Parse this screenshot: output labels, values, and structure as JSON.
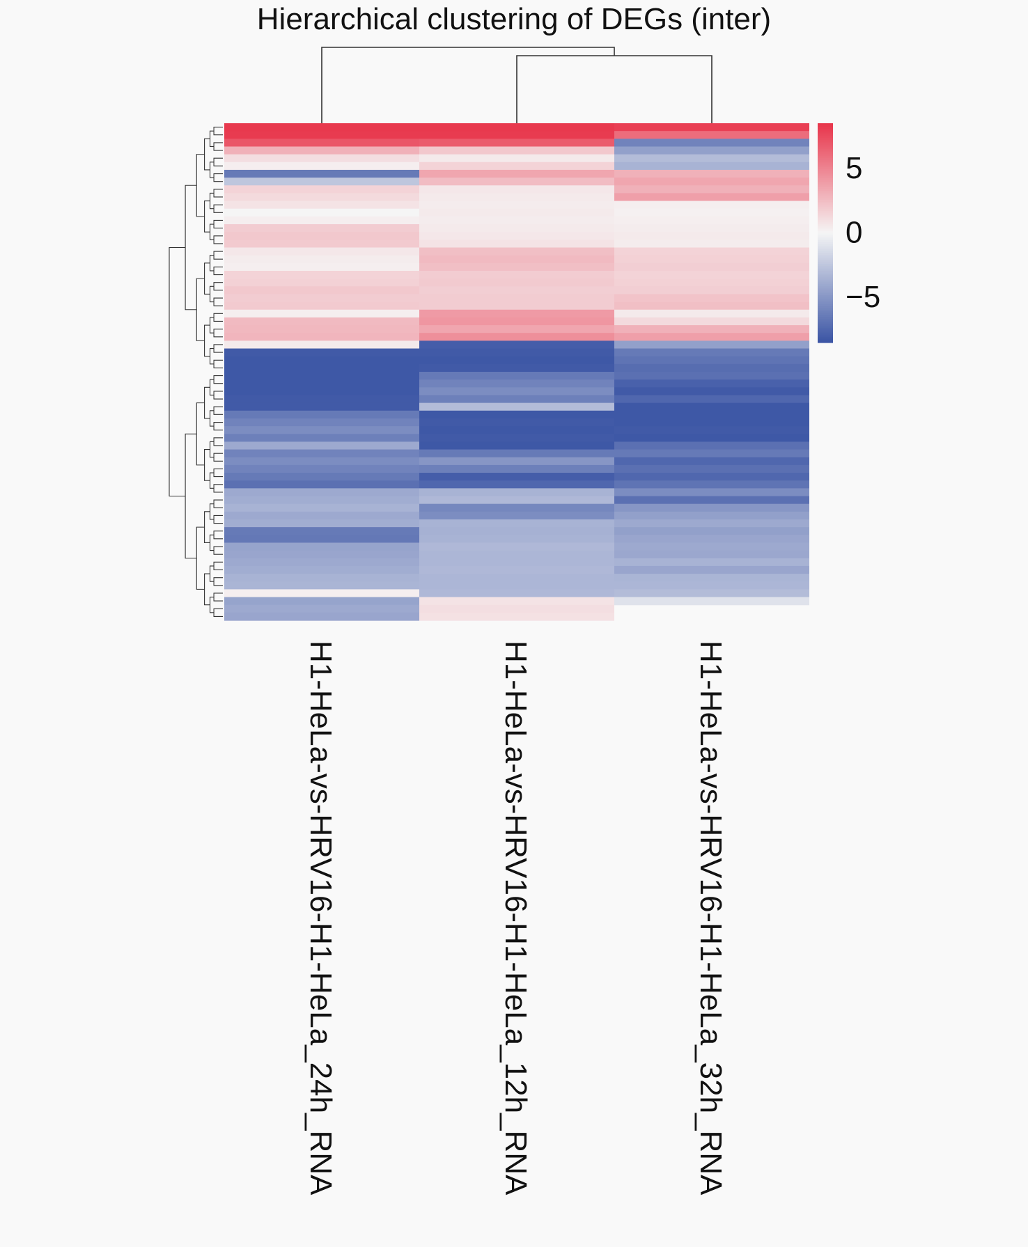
{
  "chart_data": {
    "type": "heatmap",
    "title": "Hierarchical clustering of DEGs (inter)",
    "columns": [
      "H1-HeLa-vs-HRV16-H1-HeLa_24h_RNA",
      "H1-HeLa-vs-HRV16-H1-HeLa_12h_RNA",
      "H1-HeLa-vs-HRV16-H1-HeLa_32h_RNA"
    ],
    "colorbar": {
      "ticks": [
        5,
        0,
        -5
      ],
      "tick_labels": [
        "5",
        "0",
        "−5"
      ],
      "range": [
        -8.5,
        8.5
      ],
      "colors": {
        "low": "#3a54a4",
        "mid": "#f5f5f5",
        "high": "#e8344a"
      }
    },
    "column_dendrogram": "24h | (12h, 32h)",
    "row_dendrogram": true,
    "rows": [
      {
        "values": [
          8.3,
          8.3,
          8.0
        ]
      },
      {
        "values": [
          8.2,
          8.2,
          6.0
        ]
      },
      {
        "values": [
          7.0,
          6.8,
          -6.0
        ]
      },
      {
        "values": [
          3.0,
          2.0,
          -4.5
        ]
      },
      {
        "values": [
          1.0,
          0.5,
          -3.0
        ]
      },
      {
        "values": [
          0.3,
          1.5,
          -3.5
        ]
      },
      {
        "values": [
          -6.5,
          3.5,
          3.0
        ]
      },
      {
        "values": [
          -2.5,
          2.5,
          3.5
        ]
      },
      {
        "values": [
          1.5,
          0.6,
          3.0
        ]
      },
      {
        "values": [
          1.2,
          0.5,
          3.8
        ]
      },
      {
        "values": [
          0.8,
          0.4,
          0.3
        ]
      },
      {
        "values": [
          0.0,
          0.5,
          0.2
        ]
      },
      {
        "values": [
          0.3,
          0.4,
          0.3
        ]
      },
      {
        "values": [
          1.8,
          0.5,
          0.4
        ]
      },
      {
        "values": [
          2.0,
          0.6,
          0.5
        ]
      },
      {
        "values": [
          1.9,
          0.8,
          0.4
        ]
      },
      {
        "values": [
          0.6,
          2.4,
          1.5
        ]
      },
      {
        "values": [
          0.4,
          2.6,
          1.6
        ]
      },
      {
        "values": [
          0.3,
          2.4,
          1.7
        ]
      },
      {
        "values": [
          1.5,
          1.8,
          1.5
        ]
      },
      {
        "values": [
          1.6,
          1.9,
          1.6
        ]
      },
      {
        "values": [
          2.0,
          1.7,
          1.7
        ]
      },
      {
        "values": [
          1.8,
          1.8,
          2.2
        ]
      },
      {
        "values": [
          1.9,
          1.8,
          2.4
        ]
      },
      {
        "values": [
          0.3,
          4.0,
          0.5
        ]
      },
      {
        "values": [
          2.6,
          4.2,
          1.2
        ]
      },
      {
        "values": [
          2.7,
          3.5,
          3.0
        ]
      },
      {
        "values": [
          2.8,
          4.5,
          3.8
        ]
      },
      {
        "values": [
          0.5,
          -8.0,
          -4.5
        ]
      },
      {
        "values": [
          -8.2,
          -8.2,
          -6.5
        ]
      },
      {
        "values": [
          -8.3,
          -8.3,
          -6.8
        ]
      },
      {
        "values": [
          -8.3,
          -8.2,
          -7.2
        ]
      },
      {
        "values": [
          -8.3,
          -6.5,
          -7.0
        ]
      },
      {
        "values": [
          -8.3,
          -6.0,
          -7.8
        ]
      },
      {
        "values": [
          -8.3,
          -5.5,
          -8.2
        ]
      },
      {
        "values": [
          -8.2,
          -6.2,
          -7.5
        ]
      },
      {
        "values": [
          -8.2,
          -3.0,
          -8.3
        ]
      },
      {
        "values": [
          -6.5,
          -8.3,
          -8.3
        ]
      },
      {
        "values": [
          -6.0,
          -8.2,
          -8.3
        ]
      },
      {
        "values": [
          -5.5,
          -8.3,
          -8.2
        ]
      },
      {
        "values": [
          -6.2,
          -8.2,
          -8.3
        ]
      },
      {
        "values": [
          -4.0,
          -8.3,
          -7.0
        ]
      },
      {
        "values": [
          -6.0,
          -6.5,
          -6.5
        ]
      },
      {
        "values": [
          -5.5,
          -5.0,
          -7.5
        ]
      },
      {
        "values": [
          -6.0,
          -6.2,
          -7.0
        ]
      },
      {
        "values": [
          -6.5,
          -8.0,
          -7.5
        ]
      },
      {
        "values": [
          -7.0,
          -7.5,
          -6.8
        ]
      },
      {
        "values": [
          -4.0,
          -3.5,
          -5.5
        ]
      },
      {
        "values": [
          -3.8,
          -3.2,
          -7.0
        ]
      },
      {
        "values": [
          -3.5,
          -5.8,
          -5.0
        ]
      },
      {
        "values": [
          -4.0,
          -5.5,
          -4.5
        ]
      },
      {
        "values": [
          -3.8,
          -3.5,
          -4.0
        ]
      },
      {
        "values": [
          -6.5,
          -3.6,
          -4.5
        ]
      },
      {
        "values": [
          -6.6,
          -3.5,
          -4.2
        ]
      },
      {
        "values": [
          -4.3,
          -3.2,
          -4.0
        ]
      },
      {
        "values": [
          -4.2,
          -3.3,
          -4.1
        ]
      },
      {
        "values": [
          -4.0,
          -3.3,
          -3.5
        ]
      },
      {
        "values": [
          -3.8,
          -3.2,
          -4.2
        ]
      },
      {
        "values": [
          -3.5,
          -3.3,
          -3.4
        ]
      },
      {
        "values": [
          -3.4,
          -3.3,
          -3.3
        ]
      },
      {
        "values": [
          0.3,
          -3.2,
          -3.0
        ]
      },
      {
        "values": [
          -4.3,
          0.8,
          -1.0
        ]
      },
      {
        "values": [
          -4.0,
          1.0,
          null
        ]
      },
      {
        "values": [
          -4.2,
          0.9,
          null
        ]
      }
    ]
  }
}
